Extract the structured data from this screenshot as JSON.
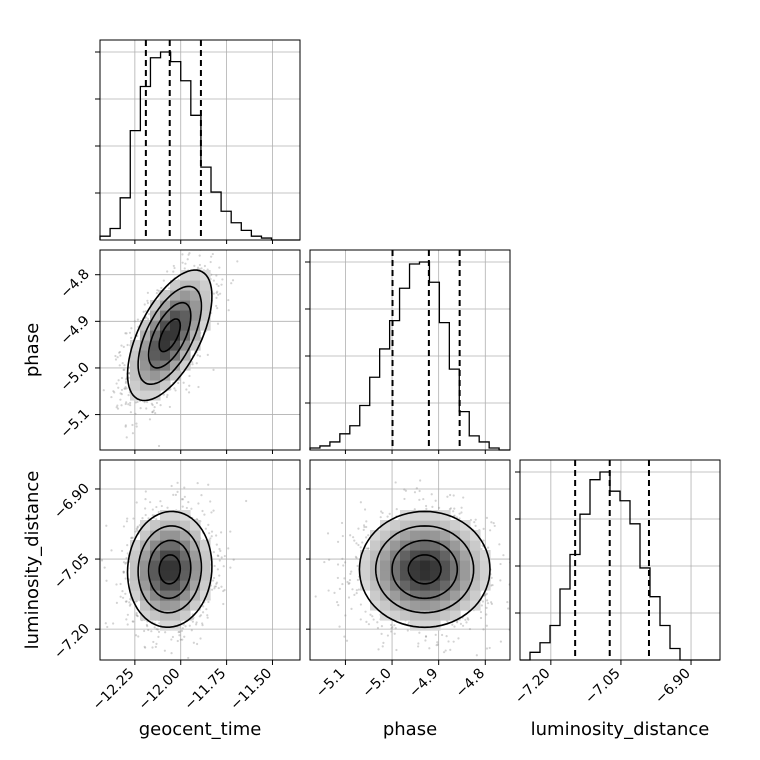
{
  "chart_data": {
    "type": "corner",
    "parameters": [
      "geocent_time",
      "phase",
      "luminosity_distance"
    ],
    "axis_labels": {
      "x": [
        "geocent_time",
        "phase",
        "luminosity_distance"
      ],
      "y": [
        "phase",
        "luminosity_distance"
      ]
    },
    "ranges": {
      "geocent_time": [
        -12.44,
        -11.35
      ],
      "phase": [
        -5.176,
        -4.747
      ],
      "luminosity_distance": [
        -7.266,
        -6.838
      ]
    },
    "ticks": {
      "geocent_time": {
        "values": [
          -12.25,
          -12.0,
          -11.75,
          -11.5
        ],
        "labels": [
          "−12.25",
          "−12.00",
          "−11.75",
          "−11.50"
        ]
      },
      "phase": {
        "values": [
          -5.1,
          -5.0,
          -4.9,
          -4.8
        ],
        "labels": [
          "−5.1",
          "−5.0",
          "−4.9",
          "−4.8"
        ]
      },
      "luminosity_distance": {
        "values": [
          -7.2,
          -7.05,
          -6.9
        ],
        "labels": [
          "−7.20",
          "−7.05",
          "−6.90"
        ]
      }
    },
    "quantiles": {
      "geocent_time": [
        -12.19,
        -12.06,
        -11.89
      ],
      "phase": [
        -4.999,
        -4.921,
        -4.855
      ],
      "luminosity_distance": [
        -7.148,
        -7.074,
        -6.99
      ]
    },
    "histograms": {
      "geocent_time": {
        "bin_edges": [
          -12.44,
          -12.385,
          -12.33,
          -12.275,
          -12.22,
          -12.165,
          -12.11,
          -12.055,
          -12.0,
          -11.945,
          -11.89,
          -11.835,
          -11.78,
          -11.725,
          -11.67,
          -11.615,
          -11.56,
          -11.505,
          -11.45,
          -11.395,
          -11.35
        ],
        "counts": [
          2,
          6,
          22,
          57,
          80,
          95,
          98,
          93,
          83,
          65,
          38,
          25,
          15,
          9,
          5,
          2,
          1,
          0,
          0,
          0
        ]
      },
      "phase": {
        "bin_edges": [
          -5.176,
          -5.1547,
          -5.1333,
          -5.112,
          -5.0906,
          -5.0693,
          -5.0479,
          -5.0266,
          -5.0052,
          -4.9839,
          -4.9625,
          -4.9412,
          -4.9198,
          -4.8985,
          -4.8771,
          -4.8558,
          -4.8344,
          -4.8131,
          -4.7917,
          -4.7704,
          -4.747
        ],
        "counts": [
          1,
          2,
          4,
          8,
          12,
          22,
          36,
          50,
          64,
          80,
          92,
          93,
          83,
          63,
          40,
          19,
          7,
          4,
          1,
          0
        ]
      },
      "luminosity_distance": {
        "bin_edges": [
          -7.266,
          -7.2446,
          -7.2232,
          -7.2018,
          -7.1804,
          -7.159,
          -7.1376,
          -7.1162,
          -7.0948,
          -7.0734,
          -7.052,
          -7.0306,
          -7.0092,
          -6.9878,
          -6.9664,
          -6.945,
          -6.9236,
          -6.9022,
          -6.8808,
          -6.8594,
          -6.838
        ],
        "counts": [
          0,
          4,
          9,
          18,
          37,
          55,
          76,
          94,
          98,
          88,
          83,
          71,
          48,
          33,
          18,
          6,
          0,
          0,
          0,
          0
        ]
      }
    },
    "pairs": [
      {
        "x": "geocent_time",
        "y": "phase",
        "mean": [
          -12.06,
          -4.93
        ],
        "std": [
          0.115,
          0.07
        ],
        "rho": 0.6
      },
      {
        "x": "geocent_time",
        "y": "luminosity_distance",
        "mean": [
          -12.06,
          -7.072
        ],
        "std": [
          0.115,
          0.062
        ],
        "rho": 0.05
      },
      {
        "x": "phase",
        "y": "luminosity_distance",
        "mean": [
          -4.93,
          -7.072
        ],
        "std": [
          0.07,
          0.062
        ],
        "rho": 0.0
      }
    ],
    "contour_levels_sigma": [
      0.5,
      1.0,
      1.5,
      2.0
    ],
    "grid": true,
    "colors": {
      "line": "#000000",
      "grid": "#b0b0b0",
      "points": "#808080"
    }
  }
}
